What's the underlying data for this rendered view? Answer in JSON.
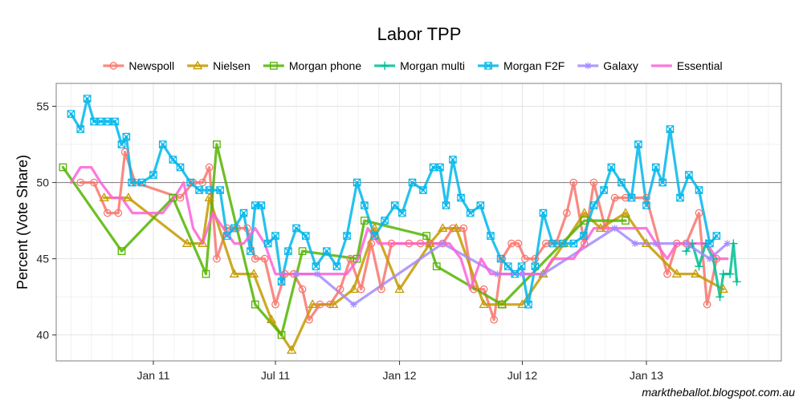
{
  "chart_data": {
    "type": "line",
    "title": "Labor TPP",
    "xlabel": "",
    "ylabel": "Percent (Vote Share)",
    "credit": "marktheballot.blogspot.com.au",
    "x_axis": {
      "type": "date",
      "range": [
        "2010-08-10",
        "2013-07-20"
      ],
      "ticks": [
        {
          "date": "2011-01-01",
          "label": "Jan 11"
        },
        {
          "date": "2011-07-01",
          "label": "Jul 11"
        },
        {
          "date": "2012-01-01",
          "label": "Jan 12"
        },
        {
          "date": "2012-07-01",
          "label": "Jul 12"
        },
        {
          "date": "2013-01-01",
          "label": "Jan 13"
        }
      ]
    },
    "y_axis": {
      "range": [
        38.3,
        56.5
      ],
      "ticks": [
        40,
        45,
        50,
        55
      ],
      "reference_line": 50
    },
    "grid": true,
    "legend_position": "top",
    "series": [
      {
        "name": "Newspoll",
        "color": "#F8766D",
        "marker": "circle",
        "points": [
          [
            "2010-09-15",
            50
          ],
          [
            "2010-10-05",
            50
          ],
          [
            "2010-10-25",
            48
          ],
          [
            "2010-11-10",
            48
          ],
          [
            "2010-11-20",
            52
          ],
          [
            "2010-12-05",
            50
          ],
          [
            "2011-02-10",
            49
          ],
          [
            "2011-03-01",
            50
          ],
          [
            "2011-03-15",
            50
          ],
          [
            "2011-03-25",
            51
          ],
          [
            "2011-04-05",
            45
          ],
          [
            "2011-04-20",
            47
          ],
          [
            "2011-05-05",
            47
          ],
          [
            "2011-05-20",
            47
          ],
          [
            "2011-06-01",
            45
          ],
          [
            "2011-06-15",
            45
          ],
          [
            "2011-07-01",
            42
          ],
          [
            "2011-07-15",
            44
          ],
          [
            "2011-07-28",
            44
          ],
          [
            "2011-08-10",
            43
          ],
          [
            "2011-08-20",
            41
          ],
          [
            "2011-09-05",
            42
          ],
          [
            "2011-09-20",
            42
          ],
          [
            "2011-10-05",
            43
          ],
          [
            "2011-10-20",
            45
          ],
          [
            "2011-11-05",
            43
          ],
          [
            "2011-11-20",
            46
          ],
          [
            "2011-12-05",
            43
          ],
          [
            "2011-12-20",
            46
          ],
          [
            "2012-01-15",
            46
          ],
          [
            "2012-02-01",
            46
          ],
          [
            "2012-02-15",
            46
          ],
          [
            "2012-03-05",
            46
          ],
          [
            "2012-03-20",
            47
          ],
          [
            "2012-04-05",
            47
          ],
          [
            "2012-04-20",
            43
          ],
          [
            "2012-05-05",
            43
          ],
          [
            "2012-05-20",
            41
          ],
          [
            "2012-06-01",
            45
          ],
          [
            "2012-06-15",
            46
          ],
          [
            "2012-06-25",
            46
          ],
          [
            "2012-07-05",
            45
          ],
          [
            "2012-07-20",
            45
          ],
          [
            "2012-08-05",
            46
          ],
          [
            "2012-08-20",
            46
          ],
          [
            "2012-09-05",
            48
          ],
          [
            "2012-09-15",
            50
          ],
          [
            "2012-10-01",
            46
          ],
          [
            "2012-10-15",
            50
          ],
          [
            "2012-11-01",
            47
          ],
          [
            "2012-11-15",
            49
          ],
          [
            "2012-12-01",
            49
          ],
          [
            "2013-01-01",
            49
          ],
          [
            "2013-02-01",
            44
          ],
          [
            "2013-02-15",
            46
          ],
          [
            "2013-03-01",
            46
          ],
          [
            "2013-03-20",
            48
          ],
          [
            "2013-04-01",
            42
          ],
          [
            "2013-04-15",
            45
          ]
        ]
      },
      {
        "name": "Nielsen",
        "color": "#C49A00",
        "marker": "triangle",
        "points": [
          [
            "2010-10-20",
            49
          ],
          [
            "2010-11-25",
            49
          ],
          [
            "2011-02-20",
            46
          ],
          [
            "2011-03-15",
            46
          ],
          [
            "2011-03-25",
            49
          ],
          [
            "2011-05-01",
            44
          ],
          [
            "2011-05-30",
            44
          ],
          [
            "2011-06-25",
            41
          ],
          [
            "2011-07-25",
            39
          ],
          [
            "2011-08-25",
            42
          ],
          [
            "2011-09-25",
            42
          ],
          [
            "2011-10-25",
            43
          ],
          [
            "2011-11-25",
            47
          ],
          [
            "2012-01-01",
            43
          ],
          [
            "2012-02-15",
            46
          ],
          [
            "2012-03-05",
            47
          ],
          [
            "2012-03-25",
            47
          ],
          [
            "2012-05-05",
            42
          ],
          [
            "2012-06-01",
            42
          ],
          [
            "2012-07-01",
            42
          ],
          [
            "2012-08-01",
            44
          ],
          [
            "2012-09-01",
            46
          ],
          [
            "2012-10-01",
            48
          ],
          [
            "2012-10-25",
            47
          ],
          [
            "2012-12-01",
            48
          ],
          [
            "2013-01-01",
            46
          ],
          [
            "2013-02-15",
            44
          ],
          [
            "2013-03-15",
            44
          ],
          [
            "2013-04-25",
            43
          ]
        ]
      },
      {
        "name": "Morgan phone",
        "color": "#53B400",
        "marker": "square",
        "points": [
          [
            "2010-08-20",
            51
          ],
          [
            "2010-11-15",
            45.5
          ],
          [
            "2011-01-30",
            49
          ],
          [
            "2011-03-20",
            44
          ],
          [
            "2011-04-05",
            52.5
          ],
          [
            "2011-06-01",
            42
          ],
          [
            "2011-07-10",
            40
          ],
          [
            "2011-08-10",
            45.5
          ],
          [
            "2011-10-30",
            45
          ],
          [
            "2011-11-10",
            47.5
          ],
          [
            "2012-02-10",
            46.5
          ],
          [
            "2012-02-25",
            44.5
          ],
          [
            "2012-06-01",
            42
          ],
          [
            "2012-10-01",
            47.5
          ],
          [
            "2012-12-01",
            47.5
          ]
        ]
      },
      {
        "name": "Morgan multi",
        "color": "#00C094",
        "marker": "plus",
        "points": [
          [
            "2013-03-01",
            45.5
          ],
          [
            "2013-03-10",
            46
          ],
          [
            "2013-03-20",
            44.5
          ],
          [
            "2013-03-30",
            46
          ],
          [
            "2013-04-10",
            45
          ],
          [
            "2013-04-20",
            42.5
          ],
          [
            "2013-04-25",
            44
          ],
          [
            "2013-05-05",
            44
          ],
          [
            "2013-05-10",
            46
          ],
          [
            "2013-05-15",
            43.5
          ]
        ]
      },
      {
        "name": "Morgan F2F",
        "color": "#00B6EB",
        "marker": "boxx",
        "points": [
          [
            "2010-09-01",
            54.5
          ],
          [
            "2010-09-15",
            53.5
          ],
          [
            "2010-09-25",
            55.5
          ],
          [
            "2010-10-05",
            54
          ],
          [
            "2010-10-15",
            54
          ],
          [
            "2010-10-25",
            54
          ],
          [
            "2010-11-05",
            54
          ],
          [
            "2010-11-15",
            52.5
          ],
          [
            "2010-11-22",
            53
          ],
          [
            "2010-11-30",
            50
          ],
          [
            "2010-12-15",
            50
          ],
          [
            "2011-01-01",
            50.5
          ],
          [
            "2011-01-15",
            52.5
          ],
          [
            "2011-01-30",
            51.5
          ],
          [
            "2011-02-10",
            51
          ],
          [
            "2011-02-25",
            50
          ],
          [
            "2011-03-10",
            49.5
          ],
          [
            "2011-03-25",
            49.5
          ],
          [
            "2011-04-10",
            49.5
          ],
          [
            "2011-04-20",
            46.5
          ],
          [
            "2011-05-01",
            47
          ],
          [
            "2011-05-15",
            48
          ],
          [
            "2011-05-25",
            45.5
          ],
          [
            "2011-06-01",
            48.5
          ],
          [
            "2011-06-10",
            48.5
          ],
          [
            "2011-06-20",
            46
          ],
          [
            "2011-07-01",
            46.5
          ],
          [
            "2011-07-10",
            43.5
          ],
          [
            "2011-07-20",
            45.5
          ],
          [
            "2011-08-01",
            47
          ],
          [
            "2011-08-15",
            46.5
          ],
          [
            "2011-08-30",
            44.5
          ],
          [
            "2011-09-15",
            45.5
          ],
          [
            "2011-09-30",
            44.5
          ],
          [
            "2011-10-15",
            46.5
          ],
          [
            "2011-10-30",
            50
          ],
          [
            "2011-11-10",
            48.5
          ],
          [
            "2011-11-25",
            46.5
          ],
          [
            "2011-12-10",
            47.5
          ],
          [
            "2011-12-25",
            48.5
          ],
          [
            "2012-01-05",
            48
          ],
          [
            "2012-01-20",
            50
          ],
          [
            "2012-02-05",
            49.5
          ],
          [
            "2012-02-20",
            51
          ],
          [
            "2012-03-01",
            51
          ],
          [
            "2012-03-10",
            48.5
          ],
          [
            "2012-03-20",
            51.5
          ],
          [
            "2012-04-01",
            49
          ],
          [
            "2012-04-15",
            48
          ],
          [
            "2012-04-30",
            48.5
          ],
          [
            "2012-05-15",
            46.5
          ],
          [
            "2012-05-30",
            45
          ],
          [
            "2012-06-10",
            44.5
          ],
          [
            "2012-06-20",
            44
          ],
          [
            "2012-06-30",
            44.5
          ],
          [
            "2012-07-10",
            42
          ],
          [
            "2012-07-20",
            44.5
          ],
          [
            "2012-08-01",
            48
          ],
          [
            "2012-08-15",
            46
          ],
          [
            "2012-08-30",
            46
          ],
          [
            "2012-09-15",
            46
          ],
          [
            "2012-09-30",
            46.5
          ],
          [
            "2012-10-15",
            48.5
          ],
          [
            "2012-10-30",
            49.5
          ],
          [
            "2012-11-10",
            51
          ],
          [
            "2012-11-25",
            50
          ],
          [
            "2012-12-10",
            49
          ],
          [
            "2012-12-20",
            52.5
          ],
          [
            "2013-01-01",
            48.5
          ],
          [
            "2013-01-15",
            51
          ],
          [
            "2013-01-25",
            50
          ],
          [
            "2013-02-05",
            53.5
          ],
          [
            "2013-02-20",
            49
          ],
          [
            "2013-03-05",
            50.5
          ],
          [
            "2013-03-20",
            49.5
          ],
          [
            "2013-04-05",
            46
          ],
          [
            "2013-04-15",
            46.5
          ]
        ]
      },
      {
        "name": "Galaxy",
        "color": "#A58AFF",
        "marker": "star",
        "points": [
          [
            "2011-08-01",
            44
          ],
          [
            "2011-09-01",
            44
          ],
          [
            "2011-10-25",
            42
          ],
          [
            "2012-03-05",
            46
          ],
          [
            "2012-05-25",
            44
          ],
          [
            "2012-07-01",
            44
          ],
          [
            "2012-08-01",
            44
          ],
          [
            "2012-11-15",
            47
          ],
          [
            "2012-12-15",
            46
          ],
          [
            "2013-01-15",
            46
          ],
          [
            "2013-03-01",
            46
          ],
          [
            "2013-04-05",
            45
          ],
          [
            "2013-05-01",
            46
          ]
        ]
      },
      {
        "name": "Essential",
        "color": "#FB61D7",
        "marker": "none",
        "points": [
          [
            "2010-09-01",
            50
          ],
          [
            "2010-09-15",
            51
          ],
          [
            "2010-10-01",
            51
          ],
          [
            "2010-10-15",
            50
          ],
          [
            "2010-11-01",
            49
          ],
          [
            "2010-11-15",
            49
          ],
          [
            "2010-12-01",
            48
          ],
          [
            "2010-12-15",
            48
          ],
          [
            "2011-01-01",
            48
          ],
          [
            "2011-01-15",
            48
          ],
          [
            "2011-02-01",
            49
          ],
          [
            "2011-02-15",
            50
          ],
          [
            "2011-03-01",
            47
          ],
          [
            "2011-03-15",
            46
          ],
          [
            "2011-03-30",
            48
          ],
          [
            "2011-04-15",
            47
          ],
          [
            "2011-05-01",
            46
          ],
          [
            "2011-05-15",
            46
          ],
          [
            "2011-06-01",
            47
          ],
          [
            "2011-06-15",
            46
          ],
          [
            "2011-07-01",
            44
          ],
          [
            "2011-07-15",
            44
          ],
          [
            "2011-08-01",
            44
          ],
          [
            "2011-08-15",
            44
          ],
          [
            "2011-09-01",
            44
          ],
          [
            "2011-09-15",
            44
          ],
          [
            "2011-10-01",
            44
          ],
          [
            "2011-10-15",
            44
          ],
          [
            "2011-11-01",
            45
          ],
          [
            "2011-11-15",
            47
          ],
          [
            "2011-12-01",
            46
          ],
          [
            "2011-12-15",
            46
          ],
          [
            "2012-01-01",
            46
          ],
          [
            "2012-01-15",
            46
          ],
          [
            "2012-02-01",
            46
          ],
          [
            "2012-02-15",
            46
          ],
          [
            "2012-03-01",
            46
          ],
          [
            "2012-03-15",
            46
          ],
          [
            "2012-04-01",
            45
          ],
          [
            "2012-04-15",
            43
          ],
          [
            "2012-05-01",
            45
          ],
          [
            "2012-05-15",
            44
          ],
          [
            "2012-06-01",
            44
          ],
          [
            "2012-06-15",
            44
          ],
          [
            "2012-07-01",
            44
          ],
          [
            "2012-07-15",
            44
          ],
          [
            "2012-08-01",
            44
          ],
          [
            "2012-08-15",
            45
          ],
          [
            "2012-09-01",
            45
          ],
          [
            "2012-09-15",
            45
          ],
          [
            "2012-10-01",
            46
          ],
          [
            "2012-10-15",
            47
          ],
          [
            "2012-11-01",
            47
          ],
          [
            "2012-11-15",
            47
          ],
          [
            "2012-12-01",
            47
          ],
          [
            "2012-12-15",
            47
          ],
          [
            "2013-01-01",
            47
          ],
          [
            "2013-01-15",
            46
          ],
          [
            "2013-02-01",
            45
          ],
          [
            "2013-02-15",
            46
          ],
          [
            "2013-03-01",
            46
          ],
          [
            "2013-03-15",
            46
          ],
          [
            "2013-04-01",
            46
          ],
          [
            "2013-04-15",
            45
          ],
          [
            "2013-05-01",
            45
          ]
        ]
      }
    ]
  }
}
